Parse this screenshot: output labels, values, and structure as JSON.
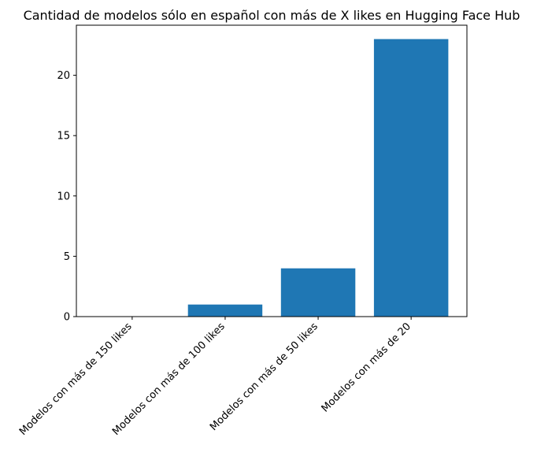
{
  "chart_data": {
    "type": "bar",
    "title": "Cantidad de modelos sólo en español con más de X likes en Hugging Face Hub",
    "xlabel": "",
    "ylabel": "",
    "categories": [
      "Modelos con más de 150 likes",
      "Modelos con más de 100 likes",
      "Modelos con más de 50 likes",
      "Modelos con más de 20"
    ],
    "values": [
      0,
      1,
      4,
      23
    ],
    "ylim": [
      0,
      24.15
    ],
    "yticks": [
      0,
      5,
      10,
      15,
      20
    ],
    "grid": false,
    "legend": "none",
    "colors": {
      "bar": "#1f77b4",
      "axis": "#000000",
      "background": "#ffffff"
    }
  }
}
